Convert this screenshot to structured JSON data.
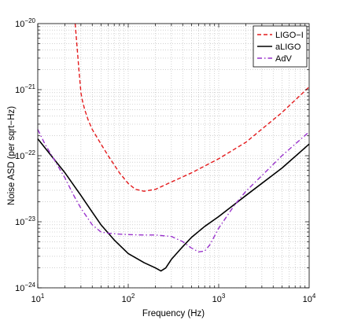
{
  "chart_data": {
    "type": "line",
    "xlabel": "Frequency (Hz)",
    "ylabel": "Noise ASD (per sqrt−Hz)",
    "x_scale": "log",
    "y_scale": "log",
    "xlim": [
      10,
      10000
    ],
    "ylim": [
      1e-24,
      1e-20
    ],
    "grid": true,
    "legend_position": "top-right",
    "x_ticks": [
      {
        "value": 10,
        "base": "10",
        "exp": "1"
      },
      {
        "value": 100,
        "base": "10",
        "exp": "2"
      },
      {
        "value": 1000,
        "base": "10",
        "exp": "3"
      },
      {
        "value": 10000,
        "base": "10",
        "exp": "4"
      }
    ],
    "y_ticks": [
      {
        "value": 1e-24,
        "base": "10",
        "exp": "−24"
      },
      {
        "value": 1e-23,
        "base": "10",
        "exp": "−23"
      },
      {
        "value": 1e-22,
        "base": "10",
        "exp": "−22"
      },
      {
        "value": 1e-21,
        "base": "10",
        "exp": "−21"
      },
      {
        "value": 1e-20,
        "base": "10",
        "exp": "−20"
      }
    ],
    "series": [
      {
        "name": "LIGO−I",
        "color": "#e41a1c",
        "dash": "dashed",
        "x": [
          25.9,
          27,
          28.5,
          30,
          31,
          33,
          36,
          40,
          50,
          60,
          80,
          100,
          120,
          150,
          200,
          300,
          500,
          1000,
          2000,
          5000,
          10000
        ],
        "y": [
          1e-20,
          5e-21,
          2e-21,
          9e-22,
          7e-22,
          5e-22,
          3.5e-22,
          2.5e-22,
          1.5e-22,
          1e-22,
          5.5e-23,
          3.8e-23,
          3.1e-23,
          2.9e-23,
          3.1e-23,
          4e-23,
          5.5e-23,
          9e-23,
          1.6e-22,
          4.5e-22,
          1.1e-21
        ]
      },
      {
        "name": "aLIGO",
        "color": "#000000",
        "dash": "solid",
        "x": [
          10,
          15,
          20,
          30,
          40,
          50,
          70,
          100,
          150,
          200,
          230,
          260,
          300,
          400,
          500,
          700,
          1000,
          2000,
          5000,
          10000
        ],
        "y": [
          1.8e-22,
          9e-23,
          5.5e-23,
          2.5e-23,
          1.4e-23,
          9e-24,
          5.3e-24,
          3.3e-24,
          2.4e-24,
          2e-24,
          1.8e-24,
          2e-24,
          2.7e-24,
          4.2e-24,
          5.8e-24,
          8.5e-24,
          1.2e-23,
          2.5e-23,
          6.5e-23,
          1.5e-22
        ]
      },
      {
        "name": "AdV",
        "color": "#9932cc",
        "dash": "dashdot",
        "x": [
          10,
          12,
          15,
          20,
          25,
          30,
          40,
          50,
          60,
          80,
          100,
          150,
          200,
          300,
          400,
          500,
          600,
          700,
          800,
          1000,
          1500,
          2000,
          3000,
          5000,
          10000
        ],
        "y": [
          2.5e-22,
          1.5e-22,
          9e-23,
          4.6e-23,
          2.5e-23,
          1.6e-23,
          9e-24,
          7e-24,
          6.7e-24,
          6.5e-24,
          6.4e-24,
          6.3e-24,
          6.3e-24,
          6e-24,
          5e-24,
          4e-24,
          3.5e-24,
          3.6e-24,
          4.5e-24,
          8e-24,
          1.8e-23,
          2.9e-23,
          5e-23,
          1e-22,
          2.3e-22
        ]
      }
    ]
  }
}
